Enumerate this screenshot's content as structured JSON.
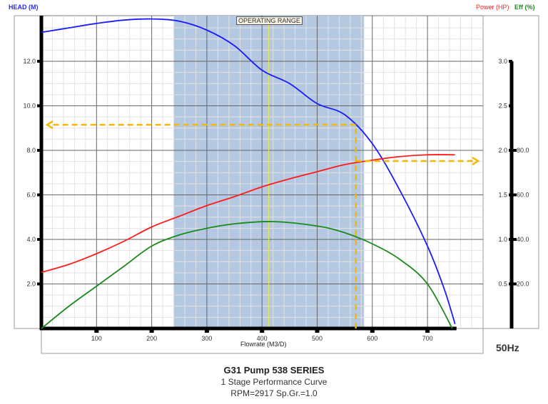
{
  "chart_data": {
    "type": "line",
    "title": "G31 Pump 538 SERIES",
    "subtitle": "1 Stage Performance Curve",
    "subtitle2": "RPM=2917 Sp.Gr.=1.0",
    "frequency_label": "50Hz",
    "xlabel": "Flowrate (M3/D)",
    "ylabel_left": "HEAD (M)",
    "ylabel_right_power": "Power (HP)",
    "ylabel_right_eff": "Eff (%)",
    "xlim": [
      0,
      800
    ],
    "ylim_left": [
      0,
      14
    ],
    "ylim_right_power": [
      0,
      3.0
    ],
    "ylim_right_eff": [
      0,
      120
    ],
    "x_ticks": [
      100,
      200,
      300,
      400,
      500,
      600,
      700
    ],
    "y_ticks_left": [
      "2.0",
      "4.0",
      "6.0",
      "8.0",
      "10.0",
      "12.0"
    ],
    "y_ticks_right_power": [
      "0.5",
      "1.0",
      "1.5",
      "2.0",
      "2.5",
      "3.0"
    ],
    "y_ticks_right_eff": [
      "20.0",
      "40.0",
      "60.0",
      "80.0"
    ],
    "grid": true,
    "operating_range": {
      "label": "OPERATING RANGE",
      "from": 240,
      "to": 585,
      "bep": 412
    },
    "duty_point": {
      "flow": 570,
      "head": 9.15,
      "power": 1.88
    },
    "series": [
      {
        "name": "Head (M)",
        "color": "#1a1aff",
        "axis": "left",
        "x": [
          0,
          50,
          100,
          150,
          200,
          250,
          300,
          350,
          400,
          450,
          500,
          550,
          600,
          650,
          700,
          730,
          750
        ],
        "y": [
          13.3,
          13.5,
          13.7,
          13.85,
          13.9,
          13.8,
          13.4,
          12.7,
          11.6,
          11.0,
          10.1,
          9.6,
          8.3,
          6.2,
          3.7,
          1.8,
          0.2
        ]
      },
      {
        "name": "Power (HP)",
        "color": "#ff1a1a",
        "axis": "right_power",
        "x": [
          0,
          50,
          100,
          150,
          200,
          250,
          300,
          350,
          400,
          450,
          500,
          550,
          600,
          650,
          700,
          750
        ],
        "y": [
          0.63,
          0.72,
          0.84,
          0.98,
          1.14,
          1.26,
          1.38,
          1.48,
          1.59,
          1.68,
          1.76,
          1.84,
          1.89,
          1.93,
          1.95,
          1.95
        ]
      },
      {
        "name": "Eff (%)",
        "color": "#1a8a1a",
        "axis": "right_eff",
        "x": [
          0,
          50,
          100,
          150,
          200,
          250,
          300,
          350,
          420,
          500,
          550,
          600,
          650,
          700,
          745
        ],
        "y": [
          0,
          10,
          19,
          28,
          37,
          42,
          45,
          47,
          48,
          46,
          43,
          38,
          31,
          20,
          0
        ]
      }
    ]
  }
}
